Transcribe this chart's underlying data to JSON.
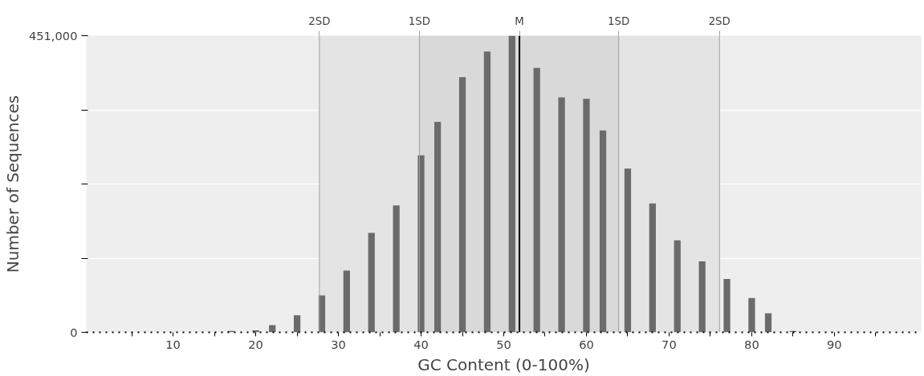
{
  "chart_data": {
    "type": "bar",
    "xlabel": "GC Content (0-100%)",
    "ylabel": "Number of Sequences",
    "x": [
      17,
      20,
      22,
      25,
      28,
      31,
      34,
      37,
      40,
      42,
      45,
      48,
      51,
      54,
      57,
      60,
      62,
      65,
      68,
      71,
      74,
      77,
      80,
      82,
      85
    ],
    "values": [
      2000,
      3000,
      11000,
      26000,
      56000,
      94000,
      151000,
      193000,
      269000,
      320000,
      388000,
      427000,
      451000,
      402000,
      357000,
      355000,
      307000,
      249000,
      196000,
      140000,
      108000,
      81000,
      52000,
      29000,
      2000
    ],
    "color": "#6b6b6b",
    "xlim": [
      -0.5,
      100.5
    ],
    "ylim": [
      0,
      451000
    ],
    "xticks": [
      {
        "value": 5,
        "label": null
      },
      10,
      {
        "value": 15,
        "label": null
      },
      20,
      {
        "value": 25,
        "label": null
      },
      30,
      {
        "value": 35,
        "label": null
      },
      40,
      {
        "value": 45,
        "label": null
      },
      50,
      {
        "value": 55,
        "label": null
      },
      60,
      {
        "value": 65,
        "label": null
      },
      70,
      {
        "value": 75,
        "label": null
      },
      80,
      {
        "value": 85,
        "label": null
      },
      90,
      {
        "value": 95,
        "label": null
      }
    ],
    "yticks": [
      0,
      {
        "value": 112750,
        "label": null
      },
      {
        "value": 225500,
        "label": null
      },
      {
        "value": 338250,
        "label": null
      },
      {
        "value": 451000,
        "label": "451,000"
      }
    ],
    "grid": "y",
    "bands": [
      {
        "axis": "x",
        "from": 27.7,
        "to": 76.1,
        "color": "#e4e4e4"
      },
      {
        "axis": "x",
        "from": 39.8,
        "to": 63.9,
        "color": "#d9d9d9"
      }
    ],
    "ref_lines": [
      {
        "axis": "x",
        "value": 27.7,
        "label": "2SD",
        "color": "#a0a0a0"
      },
      {
        "axis": "x",
        "value": 39.8,
        "label": "1SD",
        "color": "#a0a0a0"
      },
      {
        "axis": "x",
        "value": 51.9,
        "label": "M",
        "color": "#000000"
      },
      {
        "axis": "x",
        "value": 63.9,
        "label": "1SD",
        "color": "#a0a0a0"
      },
      {
        "axis": "x",
        "value": 76.1,
        "label": "2SD",
        "color": "#a0a0a0"
      }
    ]
  }
}
